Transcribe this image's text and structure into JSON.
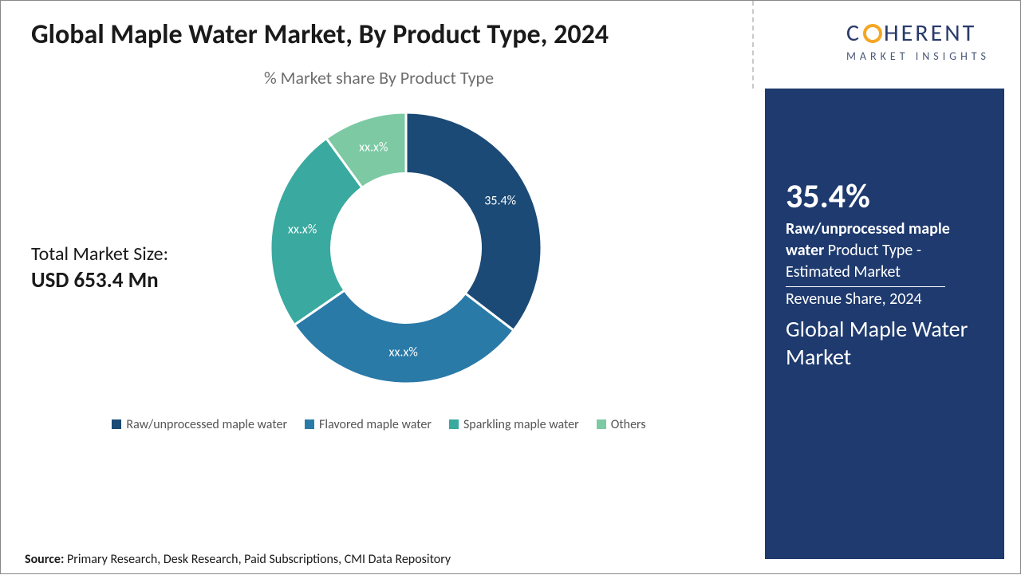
{
  "title": "Global Maple Water Market, By Product Type, 2024",
  "subtitle": "% Market share By Product Type",
  "market_size": {
    "label": "Total Market Size:",
    "value": "USD 653.4 Mn"
  },
  "chart": {
    "type": "donut",
    "background_color": "#ffffff",
    "inner_radius_ratio": 0.55,
    "outer_radius": 170,
    "stroke": "#ffffff",
    "stroke_width": 3,
    "slices": [
      {
        "name": "Raw/unprocessed maple water",
        "value": 35.4,
        "label": "35.4%",
        "color": "#1b4a76"
      },
      {
        "name": "Flavored maple water",
        "value": 30.0,
        "label": "xx.x%",
        "color": "#2a7aa8"
      },
      {
        "name": "Sparkling maple water",
        "value": 24.6,
        "label": "xx.x%",
        "color": "#3aa99f"
      },
      {
        "name": "Others",
        "value": 10.0,
        "label": "xx.x%",
        "color": "#7cc9a3"
      }
    ],
    "label_fontsize": 16,
    "label_color": "#ffffff"
  },
  "legend": [
    {
      "swatch": "#1b4a76",
      "text": "Raw/unprocessed maple water"
    },
    {
      "swatch": "#2a7aa8",
      "text": "Flavored maple water"
    },
    {
      "swatch": "#3aa99f",
      "text": "Sparkling maple water"
    },
    {
      "swatch": "#7cc9a3",
      "text": "Others"
    }
  ],
  "source": {
    "label": "Source:",
    "text": " Primary Research, Desk Research, Paid Subscriptions, CMI Data Repository"
  },
  "logo": {
    "pre": "C",
    "post": "HERENT",
    "sub": "MARKET INSIGHTS"
  },
  "side": {
    "pct": "35.4%",
    "bold": "Raw/unprocessed maple water",
    "rest1": " Product Type - Estimated Market ",
    "rest2": "Revenue Share, 2024",
    "title": "Global Maple Water Market"
  },
  "colors": {
    "panel_bg": "#1e3a6e",
    "text_dark": "#1a1a1a",
    "text_muted": "#6e6e6e",
    "logo_ring": "#f5a623"
  }
}
